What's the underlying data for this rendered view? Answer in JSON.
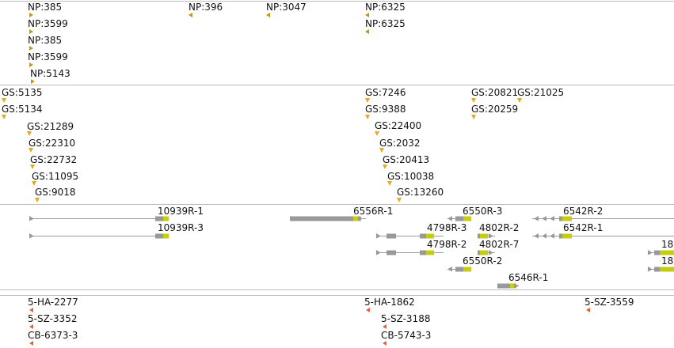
{
  "colors": {
    "np_marker": "#c8960a",
    "gs_marker": "#e8a820",
    "mutant_marker": "#e8603a",
    "gene_intron": "#9a9a9a",
    "gene_cds": "#999999",
    "gene_utr": "#c6cc12",
    "track_divider": "#bdbdbd",
    "label_text": "#111111"
  },
  "tracks": {
    "np_insertions": [
      {
        "label": "NP:385"
      },
      {
        "label": "NP:3599"
      },
      {
        "label": "NP:385"
      },
      {
        "label": "NP:3599"
      },
      {
        "label": "NP:5143"
      },
      {
        "label": "NP:396"
      },
      {
        "label": "NP:3047"
      },
      {
        "label": "NP:6325"
      },
      {
        "label": "NP:6325"
      }
    ],
    "gs_insertions": [
      {
        "label": "GS:5135"
      },
      {
        "label": "GS:5134"
      },
      {
        "label": "GS:21289"
      },
      {
        "label": "GS:22310"
      },
      {
        "label": "GS:22732"
      },
      {
        "label": "GS:11095"
      },
      {
        "label": "GS:9018"
      },
      {
        "label": "GS:7246"
      },
      {
        "label": "GS:9388"
      },
      {
        "label": "GS:22400"
      },
      {
        "label": "GS:2032"
      },
      {
        "label": "GS:20413"
      },
      {
        "label": "GS:10038"
      },
      {
        "label": "GS:13260"
      },
      {
        "label": "GS:20821"
      },
      {
        "label": "GS:21025"
      },
      {
        "label": "GS:20259"
      }
    ],
    "transcripts": [
      {
        "label": "10939R-1"
      },
      {
        "label": "10939R-3"
      },
      {
        "label": "6556R-1"
      },
      {
        "label": "6550R-3"
      },
      {
        "label": "4798R-3"
      },
      {
        "label": "4802R-2"
      },
      {
        "label": "4798R-2"
      },
      {
        "label": "4802R-7"
      },
      {
        "label": "6550R-2"
      },
      {
        "label": "6546R-1"
      },
      {
        "label": "6542R-2"
      },
      {
        "label": "6542R-1"
      },
      {
        "label": "18"
      },
      {
        "label": "18"
      }
    ],
    "mutants": [
      {
        "label": "5-HA-2277"
      },
      {
        "label": "5-SZ-3352"
      },
      {
        "label": "CB-6373-3"
      },
      {
        "label": "5-HA-1862"
      },
      {
        "label": "5-SZ-3188"
      },
      {
        "label": "CB-5743-3"
      },
      {
        "label": "5-SZ-3559"
      }
    ]
  }
}
